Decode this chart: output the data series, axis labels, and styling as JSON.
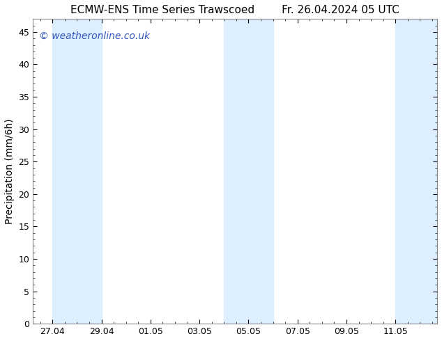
{
  "title": "ECMW-ENS Time Series Trawscoed        Fr. 26.04.2024 05 UTC",
  "ylabel": "Precipitation (mm/6h)",
  "ylim": [
    0,
    47
  ],
  "yticks": [
    0,
    5,
    10,
    15,
    20,
    25,
    30,
    35,
    40,
    45
  ],
  "background_color": "#ffffff",
  "plot_background": "#ffffff",
  "watermark": "© weatheronline.co.uk",
  "watermark_color": "#3355bb",
  "shaded_bands": [
    {
      "xmin": 27.0,
      "xmax": 29.0
    },
    {
      "xmin": 34.0,
      "xmax": 36.0
    },
    {
      "xmin": 41.0,
      "xmax": 43.0
    }
  ],
  "shade_color": "#ddeeff",
  "xticks": [
    27.0,
    29.0,
    31.0,
    33.0,
    35.0,
    37.0,
    39.0,
    41.0
  ],
  "xticklabels": [
    "27.04",
    "29.04",
    "01.05",
    "03.05",
    "05.05",
    "07.05",
    "09.05",
    "11.05"
  ],
  "xlim": [
    26.2,
    42.7
  ],
  "title_fontsize": 11,
  "axis_fontsize": 10,
  "tick_fontsize": 9,
  "watermark_fontsize": 10
}
